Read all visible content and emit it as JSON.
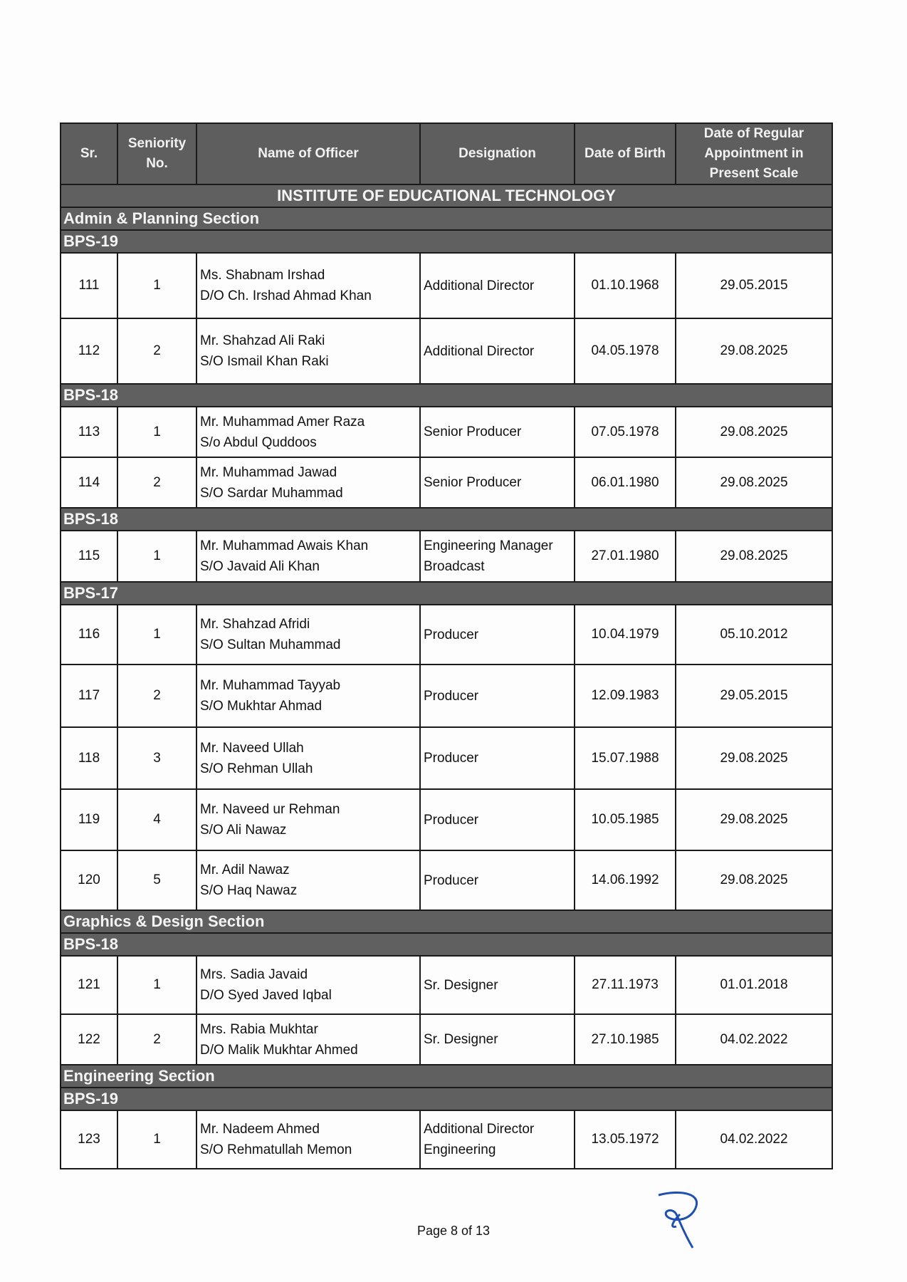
{
  "headers": [
    "Sr.",
    "Seniority No.",
    "Name of Officer",
    "Designation",
    "Date of Birth",
    "Date of Regular Appointment in Present Scale"
  ],
  "institute": "INSTITUTE OF EDUCATIONAL TECHNOLOGY",
  "blocks": [
    {
      "section": "Admin & Planning Section"
    },
    {
      "grade": "BPS-19"
    },
    {
      "row": [
        "111",
        "1",
        "Ms. Shabnam Irshad",
        "D/O Ch. Irshad Ahmad Khan",
        "Additional Director",
        "",
        "01.10.1968",
        "29.05.2015"
      ],
      "h": 92
    },
    {
      "row": [
        "112",
        "2",
        "Mr. Shahzad Ali Raki",
        "S/O Ismail Khan Raki",
        "Additional Director",
        "",
        "04.05.1978",
        "29.08.2025"
      ],
      "h": 92
    },
    {
      "grade": "BPS-18"
    },
    {
      "row": [
        "113",
        "1",
        "Mr. Muhammad Amer Raza",
        "S/o Abdul Quddoos",
        "Senior Producer",
        "",
        "07.05.1978",
        "29.08.2025"
      ],
      "h": 71
    },
    {
      "row": [
        "114",
        "2",
        "Mr. Muhammad Jawad",
        "S/O Sardar Muhammad",
        "Senior Producer",
        "",
        "06.01.1980",
        "29.08.2025"
      ],
      "h": 71
    },
    {
      "grade": "BPS-18"
    },
    {
      "row": [
        "115",
        "1",
        "Mr. Muhammad Awais Khan",
        "S/O Javaid Ali Khan",
        "Engineering Manager",
        "Broadcast",
        "27.01.1980",
        "29.08.2025"
      ],
      "h": 72
    },
    {
      "grade": "BPS-17"
    },
    {
      "row": [
        "116",
        "1",
        "Mr. Shahzad Afridi",
        "S/O Sultan Muhammad",
        "Producer",
        "",
        "10.04.1979",
        "05.10.2012"
      ],
      "h": 84
    },
    {
      "row": [
        "117",
        "2",
        "Mr. Muhammad Tayyab",
        "S/O Mukhtar Ahmad",
        "Producer",
        "",
        "12.09.1983",
        "29.05.2015"
      ],
      "h": 88
    },
    {
      "row": [
        "118",
        "3",
        "Mr. Naveed Ullah",
        "S/O Rehman Ullah",
        "Producer",
        "",
        "15.07.1988",
        "29.08.2025"
      ],
      "h": 87
    },
    {
      "row": [
        "119",
        "4",
        "Mr. Naveed ur Rehman",
        "S/O Ali Nawaz",
        "Producer",
        "",
        "10.05.1985",
        "29.08.2025"
      ],
      "h": 86
    },
    {
      "row": [
        "120",
        "5",
        "Mr. Adil Nawaz",
        "S/O Haq Nawaz",
        "Producer",
        "",
        "14.06.1992",
        "29.08.2025"
      ],
      "h": 84
    },
    {
      "section": "Graphics & Design Section"
    },
    {
      "grade": "BPS-18"
    },
    {
      "row": [
        "121",
        "1",
        "Mrs. Sadia Javaid",
        "D/O Syed Javed Iqbal",
        "Sr. Designer",
        "",
        "27.11.1973",
        "01.01.2018"
      ],
      "h": 82
    },
    {
      "row": [
        "122",
        "2",
        "Mrs. Rabia Mukhtar",
        "D/O Malik Mukhtar Ahmed",
        "Sr. Designer",
        "",
        "27.10.1985",
        "04.02.2022"
      ],
      "h": 71
    },
    {
      "section": "Engineering Section"
    },
    {
      "grade": "BPS-19"
    },
    {
      "row": [
        "123",
        "1",
        "Mr. Nadeem Ahmed",
        "S/O Rehmatullah Memon",
        "Additional Director",
        "Engineering",
        "13.05.1972",
        "04.02.2022"
      ],
      "h": 82
    }
  ],
  "footer": "Page 8 of 13",
  "signature_color": "#1f4fb0"
}
